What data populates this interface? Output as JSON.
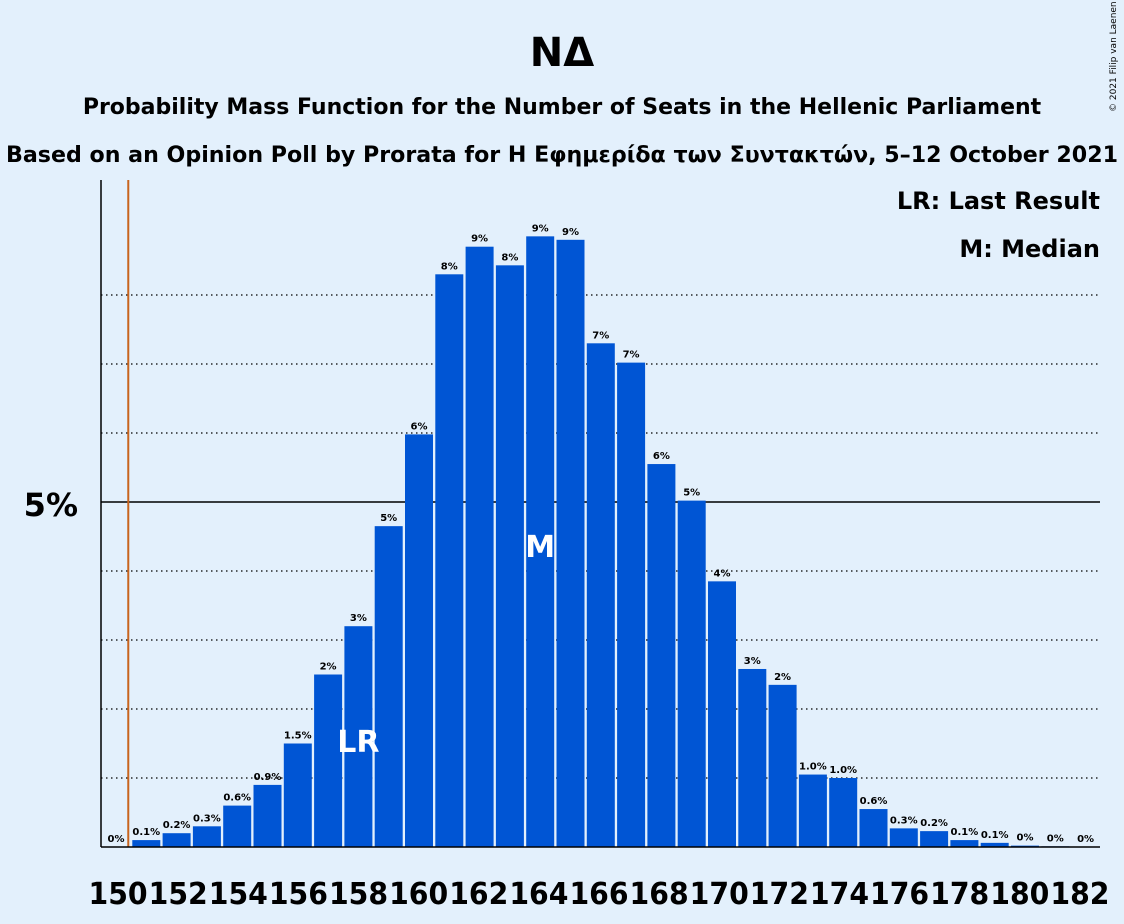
{
  "chart_data": {
    "type": "bar",
    "title": "ΝΔ",
    "subtitle": "Probability Mass Function for the Number of Seats in the Hellenic Parliament",
    "subtitle2": "Based on an Opinion Poll by Prorata for Η Εφημερίδα των Συντακτών, 5–12 October 2021",
    "copyright": "© 2021 Filip van Laenen",
    "legend": [
      "LR: Last Result",
      "M: Median"
    ],
    "legend_position": "top-right",
    "y_tick_label": "5%",
    "y_tick_value": 5,
    "ylim": [
      0,
      9.7
    ],
    "grid": "dotted",
    "bar_color": "#0055d4",
    "last_result_line_color": "#c8641e",
    "x": [
      150,
      151,
      152,
      153,
      154,
      155,
      156,
      157,
      158,
      159,
      160,
      161,
      162,
      163,
      164,
      165,
      166,
      167,
      168,
      169,
      170,
      171,
      172,
      173,
      174,
      175,
      176,
      177,
      178,
      179,
      180,
      181,
      182
    ],
    "values": [
      0,
      0.1,
      0.2,
      0.3,
      0.6,
      0.9,
      1.5,
      2.5,
      3.2,
      4.65,
      5.98,
      8.3,
      8.7,
      8.43,
      8.85,
      8.8,
      7.3,
      7.02,
      5.55,
      5.02,
      3.85,
      2.58,
      2.35,
      1.05,
      1.0,
      0.55,
      0.27,
      0.23,
      0.1,
      0.06,
      0.02,
      0.01,
      0
    ],
    "data_labels": [
      "0%",
      "0.1%",
      "0.2%",
      "0.3%",
      "0.6%",
      "0.9%",
      "1.5%",
      "2%",
      "3%",
      "5%",
      "6%",
      "8%",
      "9%",
      "8%",
      "9%",
      "9%",
      "7%",
      "7%",
      "6%",
      "5%",
      "4%",
      "3%",
      "2%",
      "1.0%",
      "1.0%",
      "0.6%",
      "0.3%",
      "0.2%",
      "0.1%",
      "0.1%",
      "0%",
      "0%",
      "0%"
    ],
    "x_tick_labels": [
      "150",
      "152",
      "154",
      "156",
      "158",
      "160",
      "162",
      "164",
      "166",
      "168",
      "170",
      "172",
      "174",
      "176",
      "178",
      "180",
      "182"
    ],
    "last_result": 158,
    "last_result_label": "LR",
    "median": 164,
    "median_label": "M",
    "threshold_line_x": 150.9
  }
}
